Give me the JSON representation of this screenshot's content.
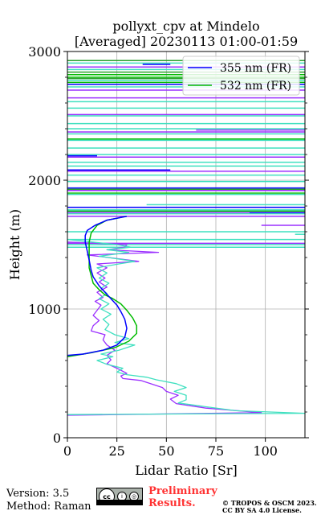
{
  "title": "pollyxt_cpv at Mindelo",
  "subtitle": "[Averaged] 20230113 01:00-01:59",
  "footer": {
    "version": "Version: 3.5",
    "method": "Method: Raman",
    "preliminary": "Preliminary",
    "results": "Results.",
    "copyright": "© TROPOS & OSCM 2023.",
    "license": "CC BY SA 4.0 License.",
    "cc_text": "cc"
  },
  "chart_data": {
    "type": "line",
    "xlabel": "Lidar Ratio [Sr]",
    "ylabel": "Height (m)",
    "xlim": [
      0,
      120
    ],
    "ylim": [
      0,
      3000
    ],
    "xticks": [
      0,
      25,
      50,
      75,
      100
    ],
    "yticks": [
      0,
      1000,
      2000,
      3000
    ],
    "grid": true,
    "legend_position": "top-right",
    "legend": [
      {
        "label": "355 nm (FR)",
        "color": "#0000ff"
      },
      {
        "label": "532 nm (FR)",
        "color": "#00bb00"
      }
    ],
    "series": [
      {
        "name": "355 nm (FR)",
        "color": "#0000ff",
        "width": 1.5,
        "points": [
          [
            0,
            640
          ],
          [
            8,
            650
          ],
          [
            18,
            680
          ],
          [
            25,
            720
          ],
          [
            29,
            780
          ],
          [
            30,
            850
          ],
          [
            29,
            920
          ],
          [
            27,
            980
          ],
          [
            25,
            1030
          ],
          [
            22,
            1080
          ],
          [
            19,
            1130
          ],
          [
            16,
            1180
          ],
          [
            13,
            1250
          ],
          [
            12,
            1300
          ],
          [
            11,
            1380
          ],
          [
            10,
            1450
          ],
          [
            9,
            1520
          ],
          [
            9,
            1570
          ],
          [
            10,
            1610
          ],
          [
            14,
            1650
          ],
          [
            20,
            1690
          ],
          [
            30,
            1720
          ]
        ]
      },
      {
        "name": "532 nm (FR)",
        "color": "#00bb00",
        "width": 1.5,
        "points": [
          [
            0,
            630
          ],
          [
            12,
            660
          ],
          [
            24,
            700
          ],
          [
            31,
            750
          ],
          [
            35,
            810
          ],
          [
            35,
            870
          ],
          [
            33,
            930
          ],
          [
            30,
            990
          ],
          [
            27,
            1040
          ],
          [
            23,
            1080
          ],
          [
            19,
            1110
          ],
          [
            16,
            1150
          ],
          [
            13,
            1200
          ],
          [
            12,
            1260
          ],
          [
            11,
            1320
          ],
          [
            11,
            1380
          ],
          [
            11,
            1450
          ],
          [
            11,
            1520
          ],
          [
            12,
            1590
          ],
          [
            15,
            1650
          ],
          [
            20,
            1690
          ],
          [
            30,
            1720
          ]
        ]
      },
      {
        "name": "",
        "color": "#9b30ff",
        "width": 1.3,
        "points": [
          [
            0,
            175
          ],
          [
            98,
            195
          ],
          [
            70,
            230
          ],
          [
            55,
            265
          ],
          [
            52,
            300
          ],
          [
            56,
            330
          ],
          [
            50,
            360
          ],
          [
            48,
            390
          ],
          [
            42,
            420
          ],
          [
            37,
            445
          ],
          [
            28,
            460
          ],
          [
            27,
            480
          ],
          [
            30,
            500
          ],
          [
            25,
            540
          ],
          [
            20,
            575
          ],
          [
            22,
            605
          ],
          [
            20,
            640
          ],
          [
            24,
            680
          ],
          [
            20,
            720
          ],
          [
            18,
            760
          ],
          [
            19,
            800
          ],
          [
            12,
            830
          ],
          [
            13,
            870
          ],
          [
            16,
            910
          ],
          [
            13,
            950
          ],
          [
            15,
            990
          ],
          [
            17,
            1030
          ],
          [
            14,
            1060
          ],
          [
            18,
            1090
          ],
          [
            15,
            1130
          ],
          [
            20,
            1170
          ],
          [
            16,
            1210
          ],
          [
            19,
            1240
          ],
          [
            15,
            1280
          ],
          [
            20,
            1320
          ],
          [
            15,
            1350
          ],
          [
            36,
            1370
          ],
          [
            26,
            1390
          ],
          [
            10,
            1420
          ],
          [
            46,
            1440
          ],
          [
            20,
            1460
          ],
          [
            29,
            1480
          ],
          [
            30,
            1500
          ],
          [
            0,
            1520
          ]
        ]
      },
      {
        "name": "",
        "color": "#40e0c0",
        "width": 1.3,
        "points": [
          [
            0,
            180
          ],
          [
            120,
            190
          ],
          [
            85,
            210
          ],
          [
            68,
            245
          ],
          [
            56,
            270
          ],
          [
            60,
            295
          ],
          [
            60,
            330
          ],
          [
            54,
            360
          ],
          [
            60,
            390
          ],
          [
            55,
            420
          ],
          [
            45,
            450
          ],
          [
            40,
            470
          ],
          [
            30,
            490
          ],
          [
            25,
            510
          ],
          [
            28,
            540
          ],
          [
            20,
            570
          ],
          [
            15,
            600
          ],
          [
            23,
            630
          ],
          [
            17,
            650
          ],
          [
            26,
            680
          ],
          [
            34,
            720
          ],
          [
            24,
            740
          ],
          [
            31,
            770
          ],
          [
            24,
            800
          ],
          [
            19,
            840
          ],
          [
            21,
            880
          ],
          [
            18,
            920
          ],
          [
            22,
            960
          ],
          [
            17,
            1000
          ],
          [
            21,
            1040
          ],
          [
            16,
            1080
          ],
          [
            20,
            1120
          ],
          [
            17,
            1160
          ],
          [
            21,
            1200
          ],
          [
            16,
            1240
          ],
          [
            20,
            1280
          ],
          [
            15,
            1320
          ],
          [
            26,
            1350
          ],
          [
            34,
            1370
          ],
          [
            25,
            1390
          ],
          [
            16,
            1410
          ],
          [
            31,
            1440
          ],
          [
            20,
            1460
          ],
          [
            32,
            1480
          ],
          [
            25,
            1500
          ],
          [
            0,
            1540
          ]
        ]
      }
    ],
    "hlines": [
      {
        "y": 2930,
        "x1": 0,
        "x2": 120,
        "color": "#2ca02c"
      },
      {
        "y": 2910,
        "x1": 0,
        "x2": 120,
        "color": "#40e0c0"
      },
      {
        "y": 2900,
        "x1": 38,
        "x2": 52,
        "color": "#0000ff"
      },
      {
        "y": 2880,
        "x1": 0,
        "x2": 120,
        "color": "#9b30ff"
      },
      {
        "y": 2860,
        "x1": 0,
        "x2": 120,
        "color": "#40e0c0"
      },
      {
        "y": 2840,
        "x1": 0,
        "x2": 120,
        "color": "#2ca02c"
      },
      {
        "y": 2820,
        "x1": 0,
        "x2": 120,
        "color": "#00bb00"
      },
      {
        "y": 2800,
        "x1": 0,
        "x2": 120,
        "color": "#00bb00"
      },
      {
        "y": 2790,
        "x1": 0,
        "x2": 120,
        "color": "#2ca02c"
      },
      {
        "y": 2775,
        "x1": 0,
        "x2": 120,
        "color": "#40e0c0"
      },
      {
        "y": 2760,
        "x1": 0,
        "x2": 120,
        "color": "#00bb00"
      },
      {
        "y": 2745,
        "x1": 0,
        "x2": 120,
        "color": "#0000ff"
      },
      {
        "y": 2725,
        "x1": 0,
        "x2": 120,
        "color": "#40e0c0"
      },
      {
        "y": 2700,
        "x1": 0,
        "x2": 120,
        "color": "#9b30ff"
      },
      {
        "y": 2640,
        "x1": 0,
        "x2": 120,
        "color": "#9b30ff"
      },
      {
        "y": 2610,
        "x1": 0,
        "x2": 120,
        "color": "#40e0c0"
      },
      {
        "y": 2560,
        "x1": 0,
        "x2": 120,
        "color": "#40e0c0"
      },
      {
        "y": 2510,
        "x1": 0,
        "x2": 120,
        "color": "#9b30ff"
      },
      {
        "y": 2500,
        "x1": 0,
        "x2": 120,
        "color": "#40e0c0"
      },
      {
        "y": 2440,
        "x1": 0,
        "x2": 120,
        "color": "#40e0c0"
      },
      {
        "y": 2400,
        "x1": 0,
        "x2": 120,
        "color": "#40e0c0"
      },
      {
        "y": 2390,
        "x1": 65,
        "x2": 120,
        "color": "#9b30ff"
      },
      {
        "y": 2375,
        "x1": 0,
        "x2": 120,
        "color": "#9b30ff"
      },
      {
        "y": 2360,
        "x1": 0,
        "x2": 120,
        "color": "#40e0c0"
      },
      {
        "y": 2320,
        "x1": 0,
        "x2": 120,
        "color": "#00bb00"
      },
      {
        "y": 2310,
        "x1": 0,
        "x2": 120,
        "color": "#40e0c0"
      },
      {
        "y": 2250,
        "x1": 0,
        "x2": 120,
        "color": "#40e0c0"
      },
      {
        "y": 2200,
        "x1": 0,
        "x2": 120,
        "color": "#40e0c0"
      },
      {
        "y": 2190,
        "x1": 0,
        "x2": 15,
        "color": "#0000ff"
      },
      {
        "y": 2180,
        "x1": 0,
        "x2": 120,
        "color": "#9b30ff"
      },
      {
        "y": 2140,
        "x1": 0,
        "x2": 120,
        "color": "#40e0c0"
      },
      {
        "y": 2110,
        "x1": 0,
        "x2": 120,
        "color": "#40e0c0"
      },
      {
        "y": 2080,
        "x1": 0,
        "x2": 52,
        "color": "#0000ff"
      },
      {
        "y": 2070,
        "x1": 0,
        "x2": 120,
        "color": "#9b30ff"
      },
      {
        "y": 2040,
        "x1": 0,
        "x2": 120,
        "color": "#40e0c0"
      },
      {
        "y": 1990,
        "x1": 0,
        "x2": 120,
        "color": "#40e0c0"
      },
      {
        "y": 1940,
        "x1": 0,
        "x2": 120,
        "color": "#0000ff"
      },
      {
        "y": 1930,
        "x1": 0,
        "x2": 120,
        "color": "#2ca02c"
      },
      {
        "y": 1920,
        "x1": 0,
        "x2": 120,
        "color": "#9b30ff"
      },
      {
        "y": 1900,
        "x1": 0,
        "x2": 120,
        "color": "#00bb00"
      },
      {
        "y": 1890,
        "x1": 0,
        "x2": 120,
        "color": "#40e0c0"
      },
      {
        "y": 1810,
        "x1": 40,
        "x2": 120,
        "color": "#40e0c0"
      },
      {
        "y": 1790,
        "x1": 0,
        "x2": 120,
        "color": "#0000ff"
      },
      {
        "y": 1770,
        "x1": 0,
        "x2": 120,
        "color": "#40e0c0"
      },
      {
        "y": 1760,
        "x1": 0,
        "x2": 120,
        "color": "#00bb00"
      },
      {
        "y": 1750,
        "x1": 0,
        "x2": 120,
        "color": "#9b30ff"
      },
      {
        "y": 1745,
        "x1": 92,
        "x2": 120,
        "color": "#0000ff"
      },
      {
        "y": 1740,
        "x1": 0,
        "x2": 120,
        "color": "#40e0c0"
      },
      {
        "y": 1720,
        "x1": 0,
        "x2": 120,
        "color": "#9b30ff"
      },
      {
        "y": 1650,
        "x1": 98,
        "x2": 120,
        "color": "#9b30ff"
      },
      {
        "y": 1600,
        "x1": 0,
        "x2": 120,
        "color": "#40e0c0"
      },
      {
        "y": 1580,
        "x1": 115,
        "x2": 120,
        "color": "#40e0c0"
      },
      {
        "y": 1540,
        "x1": 0,
        "x2": 120,
        "color": "#40e0c0"
      },
      {
        "y": 1510,
        "x1": 0,
        "x2": 120,
        "color": "#9b30ff"
      },
      {
        "y": 1500,
        "x1": 0,
        "x2": 120,
        "color": "#40e0c0"
      },
      {
        "y": 1480,
        "x1": 0,
        "x2": 120,
        "color": "#40e0c0"
      }
    ]
  }
}
